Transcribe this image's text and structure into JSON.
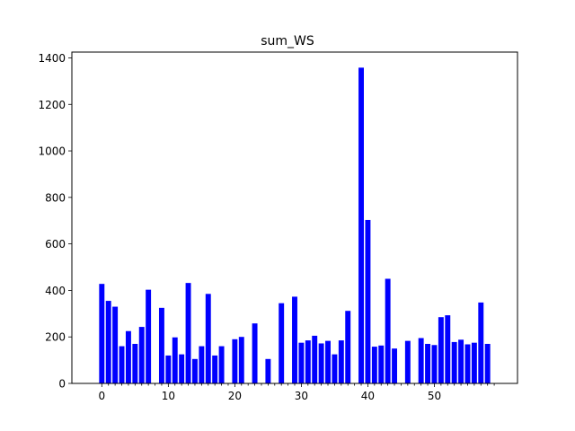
{
  "chart_data": {
    "type": "bar",
    "title": "sum_WS",
    "xlabel": "",
    "ylabel": "",
    "x": [
      0,
      1,
      2,
      3,
      4,
      5,
      6,
      7,
      8,
      9,
      10,
      11,
      12,
      13,
      14,
      15,
      16,
      17,
      18,
      19,
      20,
      21,
      22,
      23,
      24,
      25,
      26,
      27,
      28,
      29,
      30,
      31,
      32,
      33,
      34,
      35,
      36,
      37,
      38,
      39,
      40,
      41,
      42,
      43,
      44,
      45,
      46,
      47,
      48,
      49,
      50,
      51,
      52,
      53,
      54,
      55,
      56,
      57,
      58,
      59
    ],
    "values": [
      428,
      355,
      330,
      160,
      225,
      170,
      243,
      403,
      0,
      325,
      120,
      198,
      125,
      432,
      105,
      160,
      385,
      120,
      160,
      0,
      190,
      200,
      0,
      258,
      0,
      105,
      0,
      345,
      0,
      373,
      175,
      185,
      205,
      172,
      183,
      125,
      185,
      312,
      0,
      1358,
      703,
      158,
      163,
      450,
      150,
      0,
      183,
      0,
      195,
      170,
      165,
      285,
      293,
      178,
      188,
      168,
      175,
      348,
      170,
      0
    ],
    "xlim": [
      -4.5,
      62.5
    ],
    "ylim": [
      0,
      1425
    ],
    "xticks": [
      0,
      10,
      20,
      30,
      40,
      50
    ],
    "yticks": [
      0,
      200,
      400,
      600,
      800,
      1000,
      1200,
      1400
    ],
    "minor_xticks_every": 1,
    "bar_color": "#0000ff",
    "grid": false,
    "legend": "none"
  }
}
